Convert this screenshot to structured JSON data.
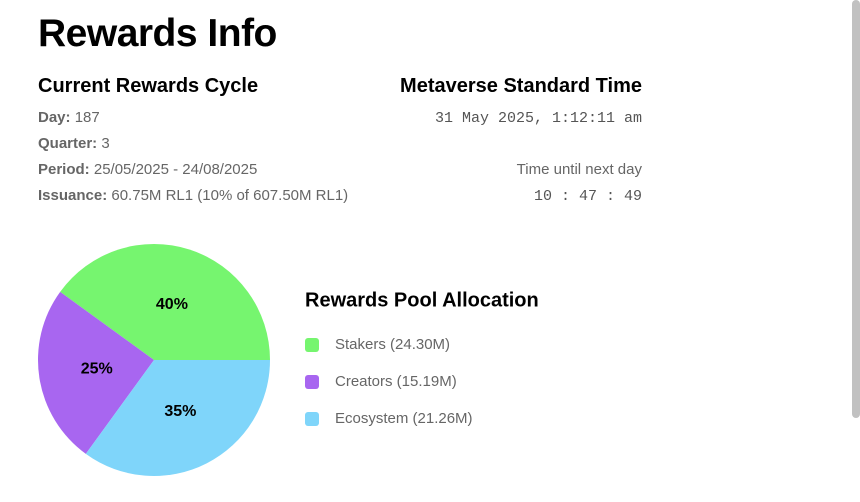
{
  "header": {
    "title": "Rewards Info"
  },
  "cycle": {
    "title": "Current Rewards Cycle",
    "rows": [
      [
        "Day:",
        "187"
      ],
      [
        "Quarter:",
        "3"
      ],
      [
        "Period:",
        "25/05/2025 - 24/08/2025"
      ],
      [
        "Issuance:",
        "60.75M RL1 (10% of 607.50M RL1)"
      ]
    ]
  },
  "time": {
    "title": "Metaverse Standard Time",
    "now": "31 May 2025, 1:12:11 am",
    "countdown_label": "Time until next day",
    "countdown": "10 : 47 : 49"
  },
  "chart_data": {
    "type": "pie",
    "title": "Rewards Pool Allocation",
    "categories": [
      "Stakers (24.30M)",
      "Creators (15.19M)",
      "Ecosystem (21.26M)"
    ],
    "values": [
      40,
      25,
      35
    ],
    "value_labels": [
      "40%",
      "25%",
      "35%"
    ],
    "colors": [
      "#76f56f",
      "#a866f0",
      "#7fd5fa"
    ]
  }
}
